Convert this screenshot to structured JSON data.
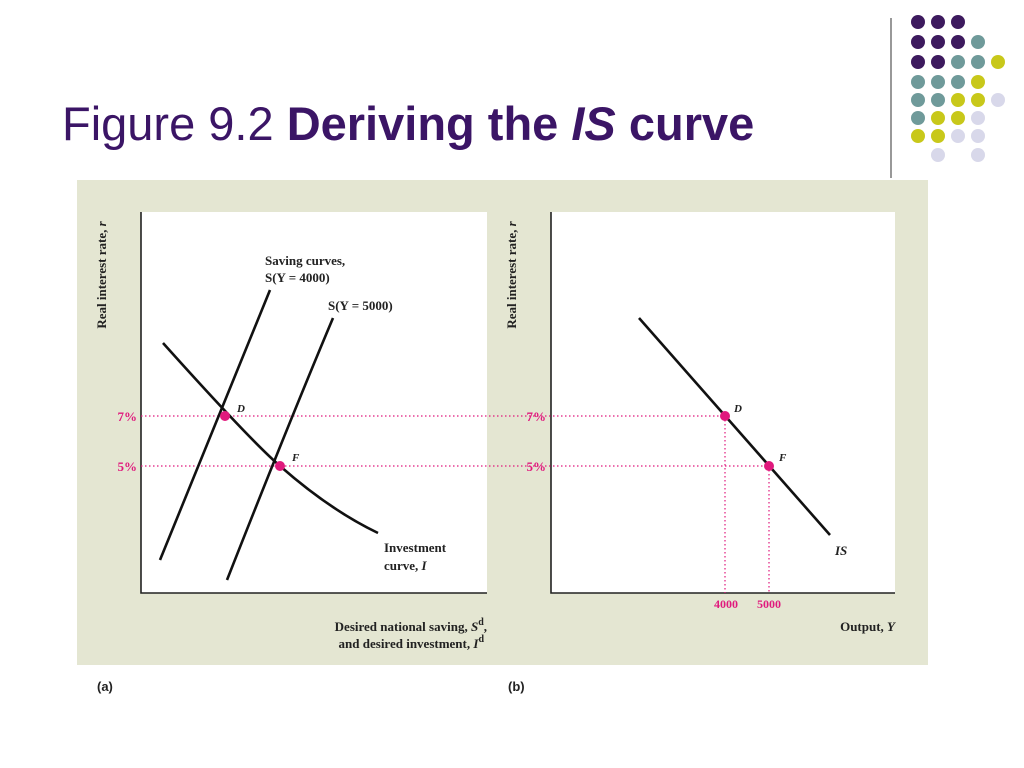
{
  "header": {
    "title": {
      "prefix": "Figure 9.2",
      "bold": "Deriving the",
      "italic": "IS",
      "suffix": "curve"
    }
  },
  "panel_a": {
    "label": "(a)",
    "y_axis": {
      "text": "Real interest rate, ",
      "var": "r"
    },
    "ticks": [
      "7%",
      "5%"
    ],
    "x_axis": {
      "line1": "Desired national saving, ",
      "var1": "S",
      "sup1": "d",
      "end1": ",",
      "line2": "and desired investment, ",
      "var2": "I",
      "sup2": "d"
    },
    "saving_title": "Saving curves,",
    "saving_1": "S(Y = 4000)",
    "saving_2": "S(Y = 5000)",
    "investment_1": "Investment",
    "investment_2": "curve, ",
    "investment_var": "I",
    "points": [
      "D",
      "F"
    ]
  },
  "panel_b": {
    "label": "(b)",
    "y_axis": {
      "text": "Real interest rate, ",
      "var": "r"
    },
    "ticks": [
      "7%",
      "5%"
    ],
    "x_ticks": [
      "4000",
      "5000"
    ],
    "x_axis": {
      "text": "Output, ",
      "var": "Y"
    },
    "curve_label": "IS",
    "points": [
      "D",
      "F"
    ]
  }
}
